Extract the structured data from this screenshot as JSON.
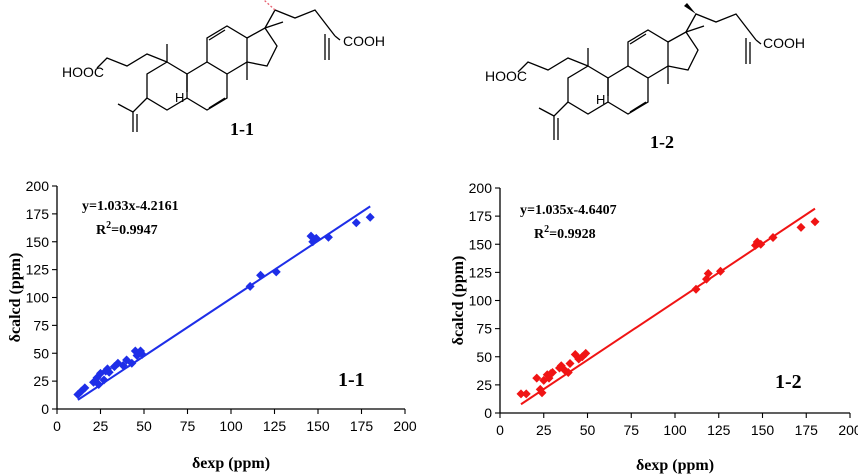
{
  "structures": [
    {
      "label": "1-1",
      "hooc_label": "HOOC",
      "cooh_label": "COOH",
      "h_label": "H",
      "methyl_style": "hashed"
    },
    {
      "label": "1-2",
      "hooc_label": "HOOC",
      "cooh_label": "COOH",
      "h_label": "H",
      "methyl_style": "wedge"
    }
  ],
  "colors": {
    "series1": "#1e2ee8",
    "series2": "#f01414",
    "hashed_methyl": "#e86070"
  },
  "chart_data": [
    {
      "type": "scatter",
      "panel_label": "1-1",
      "xlabel": "δexp (ppm)",
      "ylabel": "δcalcd (ppm)",
      "xlim": [
        0,
        200
      ],
      "ylim": [
        0,
        200
      ],
      "xticks": [
        "0",
        "25",
        "50",
        "75",
        "100",
        "125",
        "150",
        "175",
        "200"
      ],
      "yticks": [
        "0",
        "25",
        "50",
        "75",
        "100",
        "125",
        "150",
        "175",
        "200"
      ],
      "equation": "y=1.033x-4.2161",
      "r2_prefix": "R",
      "r2_sup": "2",
      "r2_value": "=0.9947",
      "fit": {
        "slope": 1.033,
        "intercept": -4.2161,
        "x_range": [
          12,
          180
        ]
      },
      "grid": false,
      "marker": "diamond",
      "points": [
        {
          "x": 12,
          "y": 13
        },
        {
          "x": 14,
          "y": 16
        },
        {
          "x": 16,
          "y": 19
        },
        {
          "x": 21,
          "y": 24
        },
        {
          "x": 23,
          "y": 28
        },
        {
          "x": 24,
          "y": 22
        },
        {
          "x": 25,
          "y": 32
        },
        {
          "x": 27,
          "y": 26
        },
        {
          "x": 28,
          "y": 34
        },
        {
          "x": 29,
          "y": 36
        },
        {
          "x": 30,
          "y": 33
        },
        {
          "x": 33,
          "y": 38
        },
        {
          "x": 35,
          "y": 41
        },
        {
          "x": 38,
          "y": 39
        },
        {
          "x": 40,
          "y": 44
        },
        {
          "x": 43,
          "y": 41
        },
        {
          "x": 45,
          "y": 52
        },
        {
          "x": 46,
          "y": 48
        },
        {
          "x": 48,
          "y": 52
        },
        {
          "x": 49,
          "y": 49
        },
        {
          "x": 111,
          "y": 110
        },
        {
          "x": 117,
          "y": 120
        },
        {
          "x": 126,
          "y": 123
        },
        {
          "x": 146,
          "y": 155
        },
        {
          "x": 147,
          "y": 150
        },
        {
          "x": 149,
          "y": 153
        },
        {
          "x": 156,
          "y": 154
        },
        {
          "x": 172,
          "y": 167
        },
        {
          "x": 180,
          "y": 172
        }
      ]
    },
    {
      "type": "scatter",
      "panel_label": "1-2",
      "xlabel": "δexp (ppm)",
      "ylabel": "δcalcd (ppm)",
      "xlim": [
        0,
        200
      ],
      "ylim": [
        0,
        200
      ],
      "xticks": [
        "0",
        "25",
        "50",
        "75",
        "100",
        "125",
        "150",
        "175",
        "200"
      ],
      "yticks": [
        "0",
        "25",
        "50",
        "75",
        "100",
        "125",
        "150",
        "175",
        "200"
      ],
      "equation": "y=1.035x-4.6407",
      "r2_prefix": "R",
      "r2_sup": "2",
      "r2_value": "=0.9928",
      "fit": {
        "slope": 1.035,
        "intercept": -4.6407,
        "x_range": [
          12,
          180
        ]
      },
      "grid": false,
      "marker": "diamond",
      "points": [
        {
          "x": 12,
          "y": 17
        },
        {
          "x": 15,
          "y": 17
        },
        {
          "x": 21,
          "y": 31
        },
        {
          "x": 23,
          "y": 21
        },
        {
          "x": 24,
          "y": 18
        },
        {
          "x": 25,
          "y": 29
        },
        {
          "x": 27,
          "y": 34
        },
        {
          "x": 28,
          "y": 31
        },
        {
          "x": 29,
          "y": 35
        },
        {
          "x": 30,
          "y": 36
        },
        {
          "x": 34,
          "y": 40
        },
        {
          "x": 35,
          "y": 42
        },
        {
          "x": 37,
          "y": 38
        },
        {
          "x": 39,
          "y": 36
        },
        {
          "x": 40,
          "y": 44
        },
        {
          "x": 43,
          "y": 52
        },
        {
          "x": 45,
          "y": 48
        },
        {
          "x": 47,
          "y": 50
        },
        {
          "x": 49,
          "y": 53
        },
        {
          "x": 112,
          "y": 110
        },
        {
          "x": 118,
          "y": 119
        },
        {
          "x": 119,
          "y": 124
        },
        {
          "x": 126,
          "y": 126
        },
        {
          "x": 146,
          "y": 149
        },
        {
          "x": 147,
          "y": 152
        },
        {
          "x": 149,
          "y": 150
        },
        {
          "x": 156,
          "y": 156
        },
        {
          "x": 172,
          "y": 165
        },
        {
          "x": 180,
          "y": 170
        }
      ]
    }
  ]
}
